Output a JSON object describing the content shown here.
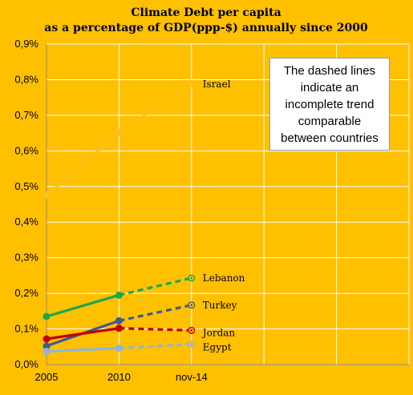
{
  "chart_data": {
    "type": "line",
    "title": "Climate Debt per capita",
    "subtitle": "as a percentage of GDP(ppp-$) annually since 2000",
    "categories": [
      "2005",
      "2010",
      "nov-14"
    ],
    "ylim": [
      0,
      0.9
    ],
    "yticks": [
      0,
      0.1,
      0.2,
      0.3,
      0.4,
      0.5,
      0.6,
      0.7,
      0.8,
      0.9
    ],
    "ytick_labels": [
      "0,0%",
      "0,1%",
      "0,2%",
      "0,3%",
      "0,4%",
      "0,5%",
      "0,6%",
      "0,7%",
      "0,8%",
      "0,9%"
    ],
    "grid": true,
    "series": [
      {
        "name": "Israel",
        "values": [
          0.475,
          0.652,
          0.79
        ],
        "color": "#F8C21A"
      },
      {
        "name": "Lebanon",
        "values": [
          0.135,
          0.195,
          0.243
        ],
        "color": "#1BA84E"
      },
      {
        "name": "Turkey",
        "values": [
          0.052,
          0.123,
          0.167
        ],
        "color": "#3E5B8F"
      },
      {
        "name": "Jordan",
        "values": [
          0.072,
          0.102,
          0.096
        ],
        "color": "#C00000"
      },
      {
        "name": "Egypt",
        "values": [
          0.037,
          0.046,
          0.057
        ],
        "color": "#8EB4E3"
      }
    ],
    "annotation": [
      "The dashed lines",
      "indicate an",
      "incomplete trend",
      "comparable",
      "between countries"
    ]
  }
}
